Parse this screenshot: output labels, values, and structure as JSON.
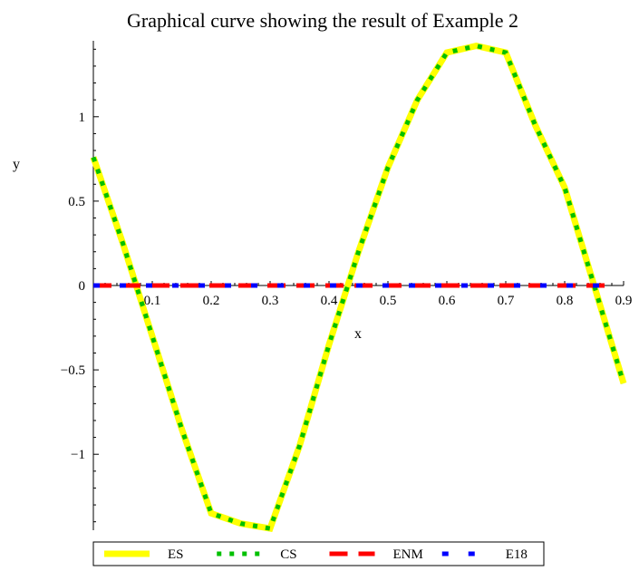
{
  "chart_data": {
    "type": "line",
    "title": "Graphical curve showing the result of  Example 2",
    "xlabel": "x",
    "ylabel": "y",
    "xlim": [
      0,
      0.9
    ],
    "ylim": [
      -1.45,
      1.45
    ],
    "x_ticks": [
      0.1,
      0.2,
      0.3,
      0.4,
      0.5,
      0.6,
      0.7,
      0.8,
      0.9
    ],
    "x_tick_labels": [
      "0.1",
      "0.2",
      "0.3",
      "0.4",
      "0.5",
      "0.6",
      "0.7",
      "0.8",
      "0.9"
    ],
    "y_ticks": [
      -1,
      -0.5,
      0,
      0.5,
      1
    ],
    "y_tick_labels": [
      "−1",
      "−0.5",
      "0",
      "0.5",
      "1"
    ],
    "grid": false,
    "legend_position": "bottom",
    "series": [
      {
        "name": "ES",
        "color": "#ffff00",
        "style": "solid",
        "x": [
          0.0,
          0.05,
          0.1,
          0.15,
          0.2,
          0.25,
          0.3,
          0.35,
          0.4,
          0.45,
          0.5,
          0.55,
          0.6,
          0.65,
          0.7,
          0.75,
          0.8,
          0.85,
          0.9
        ],
        "y": [
          0.76,
          0.25,
          -0.3,
          -0.85,
          -1.35,
          -1.41,
          -1.44,
          -0.95,
          -0.35,
          0.2,
          0.7,
          1.1,
          1.38,
          1.42,
          1.38,
          0.95,
          0.58,
          0.0,
          -0.58
        ]
      },
      {
        "name": "CS",
        "color": "#00c000",
        "style": "dotted",
        "x": [
          0.0,
          0.05,
          0.1,
          0.15,
          0.2,
          0.25,
          0.3,
          0.35,
          0.4,
          0.45,
          0.5,
          0.55,
          0.6,
          0.65,
          0.7,
          0.75,
          0.8,
          0.85,
          0.9
        ],
        "y": [
          0.76,
          0.25,
          -0.3,
          -0.85,
          -1.35,
          -1.41,
          -1.44,
          -0.95,
          -0.35,
          0.2,
          0.7,
          1.1,
          1.38,
          1.42,
          1.38,
          0.95,
          0.58,
          0.0,
          -0.58
        ]
      },
      {
        "name": "ENM",
        "color": "#ff0000",
        "style": "dashed",
        "x": [
          0.0,
          0.88
        ],
        "y": [
          0.0,
          0.0
        ]
      },
      {
        "name": "E18",
        "color": "#0000ff",
        "style": "dash-dot",
        "x": [
          0.0,
          0.88
        ],
        "y": [
          0.0,
          0.0
        ]
      }
    ]
  }
}
